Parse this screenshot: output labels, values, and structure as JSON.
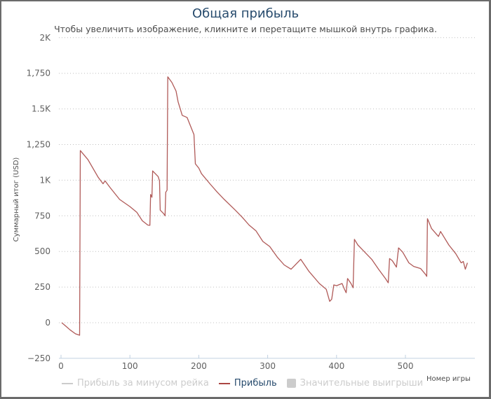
{
  "header": {
    "title": "Общая прибыль",
    "subtitle": "Чтобы увеличить изображение, кликните и перетащите мышкой внутрь графика."
  },
  "axes": {
    "y_title": "Суммарный итог (USD)",
    "x_title": "Номер игры",
    "y_ticks": [
      {
        "value": 2000,
        "label": "2K"
      },
      {
        "value": 1750,
        "label": "1,750"
      },
      {
        "value": 1500,
        "label": "1.5K"
      },
      {
        "value": 1250,
        "label": "1,250"
      },
      {
        "value": 1000,
        "label": "1K"
      },
      {
        "value": 750,
        "label": "750"
      },
      {
        "value": 500,
        "label": "500"
      },
      {
        "value": 250,
        "label": "250"
      },
      {
        "value": 0,
        "label": "0"
      },
      {
        "value": -250,
        "label": "−250"
      }
    ],
    "x_ticks": [
      {
        "value": 0,
        "label": "0"
      },
      {
        "value": 100,
        "label": "100"
      },
      {
        "value": 200,
        "label": "200"
      },
      {
        "value": 300,
        "label": "300"
      },
      {
        "value": 400,
        "label": "400"
      },
      {
        "value": 500,
        "label": "500"
      }
    ]
  },
  "legend": {
    "items": [
      {
        "label": "Прибыль за минусом рейка",
        "symbol": "line",
        "color": "#cccccc",
        "visible": false
      },
      {
        "label": "Прибыль",
        "symbol": "line",
        "color": "#aa4643",
        "visible": true
      },
      {
        "label": "Значительные выигрыши",
        "symbol": "box",
        "color": "#cccccc",
        "visible": false
      }
    ]
  },
  "colors": {
    "series": "#b05a58",
    "title": "#274b6d",
    "grid": "#c0c0c0"
  },
  "chart_data": {
    "type": "line",
    "title": "Общая прибыль",
    "subtitle": "Чтобы увеличить изображение, кликните и перетащите мышкой внутрь графика.",
    "xlabel": "Номер игры",
    "ylabel": "Суммарный итог (USD)",
    "xlim": [
      0,
      600
    ],
    "ylim": [
      -250,
      2000
    ],
    "grid": true,
    "legend_position": "bottom",
    "legend": [
      "Прибыль за минусом рейка",
      "Прибыль",
      "Значительные выигрыши"
    ],
    "series": [
      {
        "name": "Прибыль",
        "x": [
          1,
          6,
          13,
          21,
          27,
          28,
          39,
          54,
          61,
          64,
          71,
          85,
          100,
          110,
          118,
          126,
          129,
          130,
          132,
          133,
          141,
          143,
          144,
          149,
          151,
          152,
          154,
          155,
          161,
          167,
          170,
          176,
          183,
          188,
          193,
          195,
          200,
          204,
          217,
          227,
          237,
          253,
          263,
          273,
          283,
          293,
          303,
          314,
          324,
          334,
          348,
          360,
          375,
          385,
          390,
          393,
          396,
          400,
          408,
          411,
          414,
          416,
          421,
          424,
          426,
          431,
          439,
          451,
          461,
          471,
          475,
          477,
          481,
          487,
          490,
          496,
          505,
          512,
          522,
          529,
          531,
          532,
          538,
          548,
          551,
          563,
          573,
          581,
          584,
          587,
          590
        ],
        "values": [
          0,
          -20,
          -50,
          -78,
          -88,
          1208,
          1145,
          1020,
          975,
          995,
          950,
          865,
          815,
          775,
          715,
          685,
          683,
          900,
          880,
          1065,
          1025,
          995,
          790,
          765,
          750,
          915,
          930,
          1725,
          1685,
          1625,
          1550,
          1455,
          1440,
          1380,
          1320,
          1115,
          1085,
          1045,
          970,
          915,
          865,
          790,
          740,
          685,
          645,
          570,
          535,
          460,
          405,
          375,
          445,
          360,
          275,
          235,
          150,
          165,
          265,
          260,
          275,
          240,
          210,
          310,
          275,
          245,
          585,
          545,
          505,
          445,
          375,
          310,
          280,
          450,
          435,
          390,
          525,
          495,
          420,
          395,
          380,
          340,
          325,
          730,
          660,
          605,
          640,
          545,
          485,
          420,
          430,
          375,
          420
        ]
      }
    ]
  }
}
